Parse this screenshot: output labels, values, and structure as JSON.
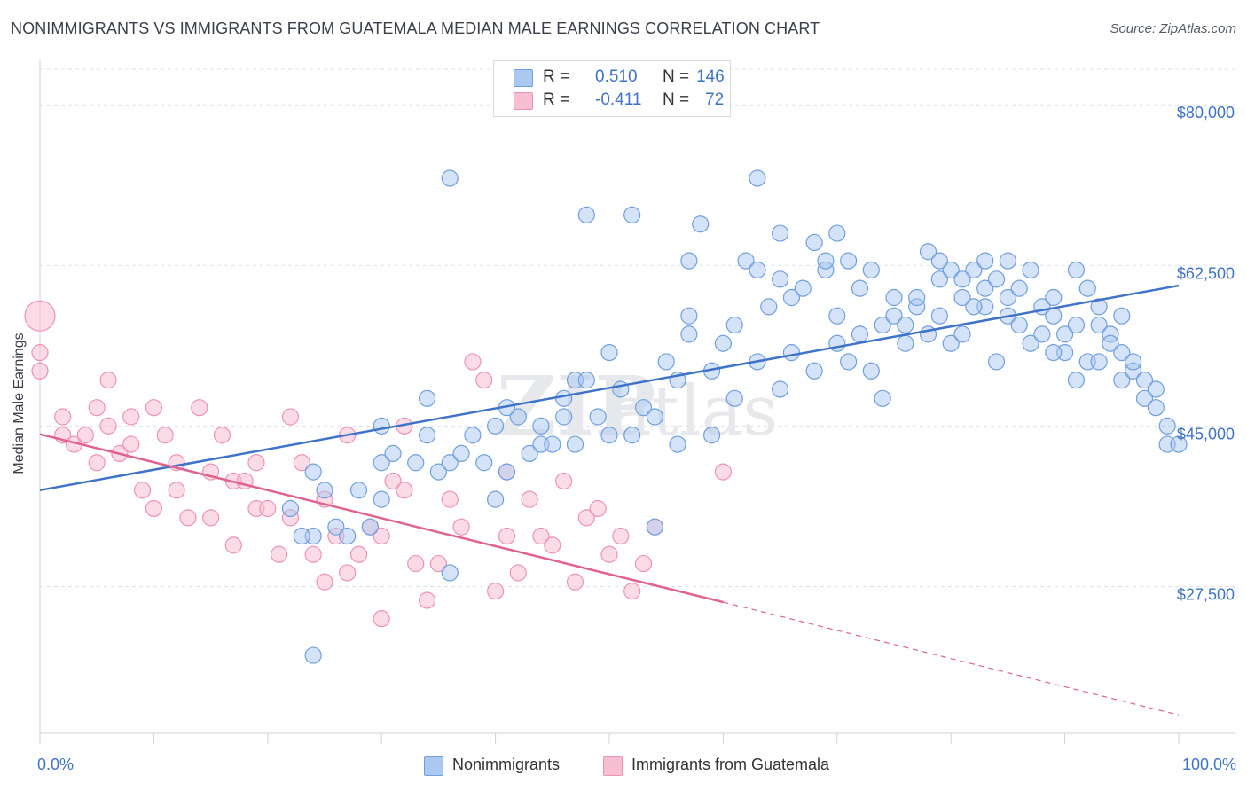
{
  "title": "NONIMMIGRANTS VS IMMIGRANTS FROM GUATEMALA MEDIAN MALE EARNINGS CORRELATION CHART",
  "source": "Source: ZipAtlas.com",
  "watermark": {
    "part1": "ZIP",
    "part2": "atlas"
  },
  "colors": {
    "blue": "#3f73c9",
    "blue_fill": "#aac8f0",
    "blue_stroke": "#6f9fe0",
    "pink": "#e0628f",
    "pink_fill": "#f7bfd1",
    "pink_stroke": "#ef92b2",
    "grid": "#dfe1e6"
  },
  "stats": [
    {
      "label": "R =",
      "r": "0.510",
      "n_label": "N =",
      "n": "146"
    },
    {
      "label": "R =",
      "r": "-0.411",
      "n_label": "N =",
      "n": "72"
    }
  ],
  "legend": {
    "a": "Nonimmigrants",
    "b": "Immigrants from Guatemala"
  },
  "chart_data": {
    "type": "scatter",
    "title": "NONIMMIGRANTS VS IMMIGRANTS FROM GUATEMALA MEDIAN MALE EARNINGS CORRELATION CHART",
    "xlabel": "",
    "ylabel": "Median Male Earnings",
    "x_tick_labels": {
      "min": "0.0%",
      "max": "100.0%"
    },
    "y_ticks": [
      {
        "value": 27500,
        "label": "$27,500"
      },
      {
        "value": 45000,
        "label": "$45,000"
      },
      {
        "value": 62500,
        "label": "$62,500"
      },
      {
        "value": 80000,
        "label": "$80,000"
      }
    ],
    "xlim": [
      0,
      100
    ],
    "ylim": [
      11500,
      83500
    ],
    "grid": true,
    "legend_position": "bottom",
    "series": [
      {
        "name": "Nonimmigrants",
        "color": "#3f73c9",
        "trend": {
          "x0": 0,
          "y0": 38000,
          "x1": 100,
          "y1": 60300
        },
        "points": [
          [
            24,
            40
          ],
          [
            25,
            38
          ],
          [
            26,
            34
          ],
          [
            24,
            33
          ],
          [
            27,
            33
          ],
          [
            28,
            38
          ],
          [
            30,
            41
          ],
          [
            30,
            37
          ],
          [
            24,
            20
          ],
          [
            22,
            36
          ],
          [
            23,
            33
          ],
          [
            29,
            34
          ],
          [
            30,
            45
          ],
          [
            31,
            42
          ],
          [
            33,
            41
          ],
          [
            34,
            44
          ],
          [
            34,
            48
          ],
          [
            35,
            40
          ],
          [
            36,
            41
          ],
          [
            37,
            42
          ],
          [
            38,
            44
          ],
          [
            39,
            41
          ],
          [
            40,
            45
          ],
          [
            41,
            40
          ],
          [
            42,
            46
          ],
          [
            43,
            42
          ],
          [
            44,
            43
          ],
          [
            45,
            43
          ],
          [
            46,
            48
          ],
          [
            47,
            50
          ],
          [
            48,
            50
          ],
          [
            49,
            46
          ],
          [
            50,
            53
          ],
          [
            51,
            49
          ],
          [
            52,
            44
          ],
          [
            53,
            47
          ],
          [
            54,
            34
          ],
          [
            55,
            52
          ],
          [
            56,
            50
          ],
          [
            57,
            55
          ],
          [
            57,
            57
          ],
          [
            59,
            51
          ],
          [
            60,
            54
          ],
          [
            61,
            56
          ],
          [
            62,
            63
          ],
          [
            63,
            62
          ],
          [
            64,
            58
          ],
          [
            65,
            61
          ],
          [
            66,
            59
          ],
          [
            67,
            60
          ],
          [
            68,
            65
          ],
          [
            69,
            62
          ],
          [
            70,
            66
          ],
          [
            70,
            57
          ],
          [
            71,
            63
          ],
          [
            72,
            60
          ],
          [
            73,
            62
          ],
          [
            74,
            56
          ],
          [
            75,
            59
          ],
          [
            75,
            57
          ],
          [
            76,
            54
          ],
          [
            77,
            58
          ],
          [
            78,
            55
          ],
          [
            79,
            61
          ],
          [
            80,
            54
          ],
          [
            80,
            62
          ],
          [
            81,
            59
          ],
          [
            82,
            62
          ],
          [
            83,
            60
          ],
          [
            83,
            58
          ],
          [
            84,
            61
          ],
          [
            85,
            57
          ],
          [
            86,
            56
          ],
          [
            87,
            54
          ],
          [
            88,
            58
          ],
          [
            89,
            57
          ],
          [
            90,
            55
          ],
          [
            90,
            53
          ],
          [
            91,
            56
          ],
          [
            92,
            52
          ],
          [
            93,
            56
          ],
          [
            94,
            55
          ],
          [
            95,
            50
          ],
          [
            96,
            51
          ],
          [
            97,
            48
          ],
          [
            98,
            47
          ],
          [
            99,
            45
          ],
          [
            99,
            43
          ],
          [
            100,
            43
          ],
          [
            36,
            29
          ],
          [
            36,
            72
          ],
          [
            48,
            68
          ],
          [
            52,
            68
          ],
          [
            57,
            63
          ],
          [
            58,
            67
          ],
          [
            63,
            72
          ],
          [
            65,
            66
          ],
          [
            69,
            63
          ],
          [
            72,
            55
          ],
          [
            40,
            37
          ],
          [
            41,
            47
          ],
          [
            44,
            45
          ],
          [
            46,
            46
          ],
          [
            47,
            43
          ],
          [
            50,
            44
          ],
          [
            54,
            46
          ],
          [
            56,
            43
          ],
          [
            59,
            44
          ],
          [
            61,
            48
          ],
          [
            63,
            52
          ],
          [
            65,
            49
          ],
          [
            66,
            53
          ],
          [
            68,
            51
          ],
          [
            70,
            54
          ],
          [
            71,
            52
          ],
          [
            73,
            51
          ],
          [
            74,
            48
          ],
          [
            76,
            56
          ],
          [
            77,
            59
          ],
          [
            79,
            57
          ],
          [
            81,
            55
          ],
          [
            82,
            58
          ],
          [
            84,
            52
          ],
          [
            85,
            59
          ],
          [
            86,
            60
          ],
          [
            88,
            55
          ],
          [
            89,
            53
          ],
          [
            91,
            62
          ],
          [
            92,
            60
          ],
          [
            93,
            58
          ],
          [
            94,
            54
          ],
          [
            95,
            53
          ],
          [
            96,
            52
          ],
          [
            97,
            50
          ],
          [
            98,
            49
          ],
          [
            95,
            57
          ],
          [
            93,
            52
          ],
          [
            91,
            50
          ],
          [
            89,
            59
          ],
          [
            87,
            62
          ],
          [
            85,
            63
          ],
          [
            83,
            63
          ],
          [
            81,
            61
          ],
          [
            79,
            63
          ],
          [
            78,
            64
          ]
        ]
      },
      {
        "name": "Immigrants from Guatemala",
        "color": "#e0628f",
        "trend": {
          "x0": 0,
          "y0": 44100,
          "x1": 60,
          "y1": 25800,
          "x_end": 100,
          "y_end": 13500
        },
        "points": [
          [
            0,
            57
          ],
          [
            0,
            53
          ],
          [
            0,
            51
          ],
          [
            2,
            44
          ],
          [
            2,
            46
          ],
          [
            3,
            43
          ],
          [
            4,
            44
          ],
          [
            5,
            47
          ],
          [
            5,
            41
          ],
          [
            6,
            45
          ],
          [
            6,
            50
          ],
          [
            7,
            42
          ],
          [
            8,
            46
          ],
          [
            8,
            43
          ],
          [
            9,
            38
          ],
          [
            10,
            36
          ],
          [
            10,
            47
          ],
          [
            11,
            44
          ],
          [
            12,
            38
          ],
          [
            12,
            41
          ],
          [
            13,
            35
          ],
          [
            14,
            47
          ],
          [
            15,
            35
          ],
          [
            15,
            40
          ],
          [
            16,
            44
          ],
          [
            17,
            32
          ],
          [
            17,
            39
          ],
          [
            18,
            39
          ],
          [
            19,
            41
          ],
          [
            19,
            36
          ],
          [
            20,
            36
          ],
          [
            21,
            31
          ],
          [
            22,
            35
          ],
          [
            22,
            46
          ],
          [
            23,
            41
          ],
          [
            24,
            31
          ],
          [
            25,
            37
          ],
          [
            25,
            28
          ],
          [
            26,
            33
          ],
          [
            27,
            44
          ],
          [
            27,
            29
          ],
          [
            28,
            31
          ],
          [
            29,
            34
          ],
          [
            30,
            33
          ],
          [
            30,
            24
          ],
          [
            31,
            39
          ],
          [
            32,
            38
          ],
          [
            32,
            45
          ],
          [
            33,
            30
          ],
          [
            34,
            26
          ],
          [
            35,
            30
          ],
          [
            36,
            37
          ],
          [
            37,
            34
          ],
          [
            38,
            52
          ],
          [
            39,
            50
          ],
          [
            40,
            27
          ],
          [
            41,
            40
          ],
          [
            41,
            33
          ],
          [
            42,
            29
          ],
          [
            43,
            37
          ],
          [
            44,
            33
          ],
          [
            45,
            32
          ],
          [
            46,
            39
          ],
          [
            47,
            28
          ],
          [
            48,
            35
          ],
          [
            49,
            36
          ],
          [
            50,
            31
          ],
          [
            51,
            33
          ],
          [
            52,
            27
          ],
          [
            53,
            30
          ],
          [
            54,
            34
          ],
          [
            60,
            40
          ]
        ]
      }
    ]
  }
}
